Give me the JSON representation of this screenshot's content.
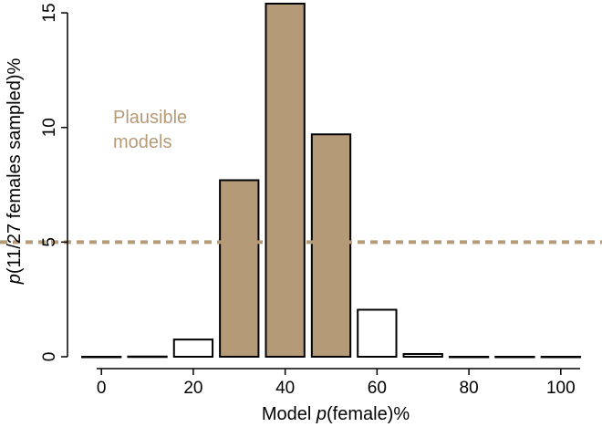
{
  "chart_data": {
    "type": "bar",
    "x": [
      0,
      10,
      20,
      30,
      40,
      50,
      60,
      70,
      80,
      90,
      100
    ],
    "values": [
      0.0,
      0.01,
      0.75,
      7.7,
      15.4,
      9.7,
      2.05,
      0.12,
      0.0,
      0.0,
      0.0
    ],
    "plausible": [
      false,
      false,
      false,
      true,
      true,
      true,
      false,
      false,
      false,
      false,
      false
    ],
    "xticks": [
      0,
      20,
      40,
      60,
      80,
      100
    ],
    "yticks": [
      0,
      5,
      10,
      15
    ],
    "xlim": [
      -5,
      105
    ],
    "ylim": [
      0,
      15.4
    ],
    "threshold": 5,
    "xlabel_prefix": "Model ",
    "xlabel_italic": "p",
    "xlabel_suffix": "(female)%",
    "ylabel_italic": "p",
    "ylabel_suffix": "(11/27 females sampled)%",
    "annotation_line1": "Plausible",
    "annotation_line2": "models",
    "colors": {
      "plausible_fill": "#b59a78",
      "other_fill": "#ffffff",
      "threshold_line": "#b59a78",
      "annotation_text": "#b59a78"
    }
  }
}
